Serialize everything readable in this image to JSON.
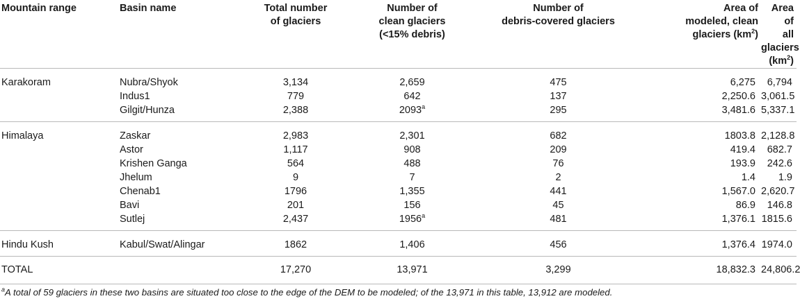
{
  "headers": {
    "range": "Mountain range",
    "basin": "Basin name",
    "total_l1": "Total number",
    "total_l2": "of glaciers",
    "clean_l1": "Number of",
    "clean_l2": "clean glaciers",
    "clean_l3": "(<15% debris)",
    "debris_l1": "Number of",
    "debris_l2": "debris-covered glaciers",
    "area_mod_l1": "Area of",
    "area_mod_l2": "modeled, clean",
    "area_mod_l3a": "glaciers (km",
    "area_mod_sup": "2",
    "area_mod_l3b": ")",
    "area_all_l1": "Area of",
    "area_all_l2": "all glaciers",
    "area_all_l3a": "(km",
    "area_all_sup": "2",
    "area_all_l3b": ")"
  },
  "groups": [
    {
      "range": "Karakoram",
      "rows": [
        {
          "basin": "Nubra/Shyok",
          "total": "3,134",
          "clean": "2,659",
          "clean_sup": "",
          "debris": "475",
          "area_mod": "6,275",
          "area_all": "6,794"
        },
        {
          "basin": "Indus1",
          "total": "779",
          "clean": "642",
          "clean_sup": "",
          "debris": "137",
          "area_mod": "2,250.6",
          "area_all": "3,061.5"
        },
        {
          "basin": "Gilgit/Hunza",
          "total": "2,388",
          "clean": "2093",
          "clean_sup": "a",
          "debris": "295",
          "area_mod": "3,481.6",
          "area_all": "5,337.1"
        }
      ]
    },
    {
      "range": "Himalaya",
      "rows": [
        {
          "basin": "Zaskar",
          "total": "2,983",
          "clean": "2,301",
          "clean_sup": "",
          "debris": "682",
          "area_mod": "1803.8",
          "area_all": "2,128.8"
        },
        {
          "basin": "Astor",
          "total": "1,117",
          "clean": "908",
          "clean_sup": "",
          "debris": "209",
          "area_mod": "419.4",
          "area_all": "682.7"
        },
        {
          "basin": "Krishen Ganga",
          "total": "564",
          "clean": "488",
          "clean_sup": "",
          "debris": "76",
          "area_mod": "193.9",
          "area_all": "242.6"
        },
        {
          "basin": "Jhelum",
          "total": "9",
          "clean": "7",
          "clean_sup": "",
          "debris": "2",
          "area_mod": "1.4",
          "area_all": "1.9"
        },
        {
          "basin": "Chenab1",
          "total": "1796",
          "clean": "1,355",
          "clean_sup": "",
          "debris": "441",
          "area_mod": "1,567.0",
          "area_all": "2,620.7"
        },
        {
          "basin": "Bavi",
          "total": "201",
          "clean": "156",
          "clean_sup": "",
          "debris": "45",
          "area_mod": "86.9",
          "area_all": "146.8"
        },
        {
          "basin": "Sutlej",
          "total": "2,437",
          "clean": "1956",
          "clean_sup": "a",
          "debris": "481",
          "area_mod": "1,376.1",
          "area_all": "1815.6"
        }
      ]
    },
    {
      "range": "Hindu Kush",
      "rows": [
        {
          "basin": "Kabul/Swat/Alingar",
          "total": "1862",
          "clean": "1,406",
          "clean_sup": "",
          "debris": "456",
          "area_mod": "1,376.4",
          "area_all": "1974.0"
        }
      ]
    }
  ],
  "total": {
    "label": "TOTAL",
    "total": "17,270",
    "clean": "13,971",
    "debris": "3,299",
    "area_mod": "18,832.3",
    "area_all": "24,806.2"
  },
  "footnote": {
    "marker": "a",
    "text": "A total of 59 glaciers in these two basins are situated too close to the edge of the DEM to be modeled; of the 13,971 in this table, 13,912 are modeled."
  }
}
